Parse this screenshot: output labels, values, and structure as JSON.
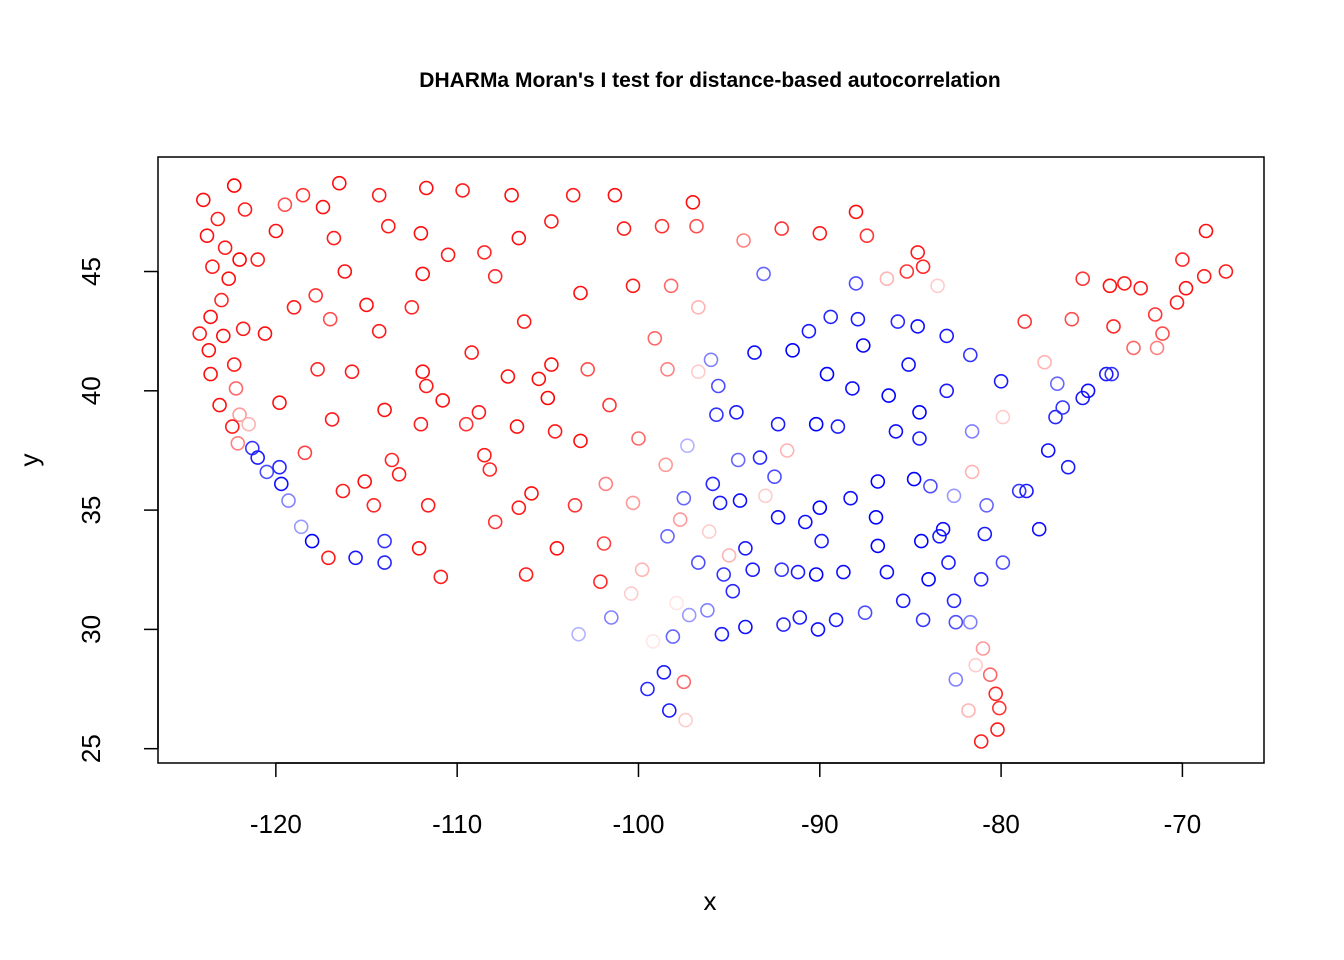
{
  "chart_data": {
    "type": "scatter",
    "title": "DHARMa Moran's I test for distance-based autocorrelation",
    "xlabel": "x",
    "ylabel": "y",
    "xlim": [
      -126.5,
      -65.5
    ],
    "ylim": [
      24.4,
      49.8
    ],
    "x_ticks": [
      -120,
      -110,
      -100,
      -90,
      -80,
      -70
    ],
    "y_ticks": [
      25,
      30,
      35,
      40,
      45
    ],
    "x_tick_labels": [
      "-120",
      "-110",
      "-100",
      "-90",
      "-80",
      "-70"
    ],
    "y_tick_labels": [
      "25",
      "30",
      "35",
      "40",
      "45"
    ],
    "grid": false,
    "legend": "none",
    "marker": "open-circle",
    "color_scale": {
      "low": "#0000ff",
      "mid": "#ffffff",
      "high": "#ff0000"
    },
    "points": [
      [
        -124.0,
        48.0,
        0.95
      ],
      [
        -123.2,
        47.2,
        0.9
      ],
      [
        -122.3,
        48.6,
        1.0
      ],
      [
        -121.7,
        47.6,
        0.9
      ],
      [
        -123.8,
        46.5,
        0.95
      ],
      [
        -122.8,
        46.0,
        0.9
      ],
      [
        -122.0,
        45.5,
        1.0
      ],
      [
        -123.5,
        45.2,
        0.9
      ],
      [
        -122.6,
        44.7,
        0.95
      ],
      [
        -123.0,
        43.8,
        0.85
      ],
      [
        -123.6,
        43.1,
        0.95
      ],
      [
        -124.2,
        42.4,
        0.9
      ],
      [
        -122.9,
        42.3,
        0.95
      ],
      [
        -121.8,
        42.6,
        0.9
      ],
      [
        -123.7,
        41.7,
        0.95
      ],
      [
        -122.3,
        41.1,
        0.9
      ],
      [
        -123.6,
        40.7,
        0.95
      ],
      [
        -122.2,
        40.1,
        0.6
      ],
      [
        -123.1,
        39.4,
        0.95
      ],
      [
        -122.0,
        39.0,
        0.4
      ],
      [
        -122.4,
        38.5,
        0.9
      ],
      [
        -121.5,
        38.6,
        0.3
      ],
      [
        -122.1,
        37.8,
        0.5
      ],
      [
        -121.3,
        37.6,
        -0.8
      ],
      [
        -121.0,
        37.2,
        -0.9
      ],
      [
        -120.5,
        36.6,
        -0.7
      ],
      [
        -119.8,
        36.8,
        -0.85
      ],
      [
        -119.7,
        36.1,
        -0.95
      ],
      [
        -119.3,
        35.4,
        -0.5
      ],
      [
        -118.6,
        34.3,
        -0.4
      ],
      [
        -118.0,
        33.7,
        -1.0
      ],
      [
        -117.1,
        33.0,
        0.9
      ],
      [
        -115.6,
        33.0,
        -0.9
      ],
      [
        -114.0,
        32.8,
        -0.85
      ],
      [
        -114.0,
        33.7,
        -0.8
      ],
      [
        -121.0,
        45.5,
        0.9
      ],
      [
        -120.0,
        46.7,
        0.95
      ],
      [
        -119.5,
        47.8,
        0.7
      ],
      [
        -118.5,
        48.2,
        0.8
      ],
      [
        -117.4,
        47.7,
        0.95
      ],
      [
        -116.8,
        46.4,
        0.9
      ],
      [
        -116.2,
        45.0,
        0.95
      ],
      [
        -117.8,
        44.0,
        0.8
      ],
      [
        -119.0,
        43.5,
        0.9
      ],
      [
        -120.6,
        42.4,
        0.95
      ],
      [
        -117.0,
        43.0,
        0.7
      ],
      [
        -115.0,
        43.6,
        0.95
      ],
      [
        -114.3,
        42.5,
        0.9
      ],
      [
        -112.5,
        43.5,
        0.85
      ],
      [
        -111.9,
        44.9,
        0.95
      ],
      [
        -113.8,
        46.9,
        0.9
      ],
      [
        -112.0,
        46.6,
        0.95
      ],
      [
        -110.5,
        45.7,
        0.9
      ],
      [
        -108.5,
        45.8,
        0.85
      ],
      [
        -106.6,
        46.4,
        0.95
      ],
      [
        -104.8,
        47.1,
        0.9
      ],
      [
        -107.0,
        48.2,
        0.95
      ],
      [
        -109.7,
        48.4,
        0.9
      ],
      [
        -111.7,
        48.5,
        0.95
      ],
      [
        -114.3,
        48.2,
        0.9
      ],
      [
        -116.5,
        48.7,
        0.95
      ],
      [
        -103.6,
        48.2,
        0.9
      ],
      [
        -101.3,
        48.2,
        0.95
      ],
      [
        -100.8,
        46.8,
        0.9
      ],
      [
        -98.7,
        46.9,
        0.8
      ],
      [
        -97.0,
        47.9,
        0.95
      ],
      [
        -96.8,
        46.9,
        0.7
      ],
      [
        -100.3,
        44.4,
        0.9
      ],
      [
        -103.2,
        44.1,
        0.95
      ],
      [
        -98.2,
        44.4,
        0.6
      ],
      [
        -96.7,
        43.5,
        0.3
      ],
      [
        -106.3,
        42.9,
        0.9
      ],
      [
        -104.8,
        41.1,
        0.95
      ],
      [
        -107.9,
        44.8,
        0.85
      ],
      [
        -109.2,
        41.6,
        0.9
      ],
      [
        -111.9,
        40.8,
        0.95
      ],
      [
        -111.7,
        40.2,
        0.9
      ],
      [
        -113.6,
        37.1,
        0.85
      ],
      [
        -112.0,
        38.6,
        0.9
      ],
      [
        -110.8,
        39.6,
        0.95
      ],
      [
        -109.5,
        38.6,
        0.8
      ],
      [
        -108.5,
        37.3,
        0.9
      ],
      [
        -106.7,
        38.5,
        0.95
      ],
      [
        -105.0,
        39.7,
        1.0
      ],
      [
        -105.5,
        40.5,
        0.95
      ],
      [
        -104.6,
        38.3,
        0.9
      ],
      [
        -103.2,
        37.9,
        0.95
      ],
      [
        -106.6,
        35.1,
        0.9
      ],
      [
        -105.9,
        35.7,
        0.95
      ],
      [
        -108.2,
        36.7,
        0.85
      ],
      [
        -107.9,
        34.5,
        0.8
      ],
      [
        -106.2,
        32.3,
        0.9
      ],
      [
        -104.5,
        33.4,
        0.95
      ],
      [
        -103.5,
        35.2,
        0.8
      ],
      [
        -111.6,
        35.2,
        0.9
      ],
      [
        -112.1,
        33.4,
        0.95
      ],
      [
        -110.9,
        32.2,
        0.9
      ],
      [
        -114.6,
        35.2,
        0.85
      ],
      [
        -113.2,
        36.5,
        0.9
      ],
      [
        -115.1,
        36.2,
        0.95
      ],
      [
        -116.9,
        38.8,
        0.9
      ],
      [
        -119.8,
        39.5,
        0.95
      ],
      [
        -117.7,
        40.9,
        0.85
      ],
      [
        -115.8,
        40.8,
        0.9
      ],
      [
        -114.0,
        39.2,
        0.95
      ],
      [
        -118.4,
        37.4,
        0.75
      ],
      [
        -116.3,
        35.8,
        0.9
      ],
      [
        -108.8,
        39.1,
        0.9
      ],
      [
        -107.2,
        40.6,
        0.95
      ],
      [
        -102.8,
        40.9,
        0.7
      ],
      [
        -101.6,
        39.4,
        0.8
      ],
      [
        -100.0,
        38.0,
        0.6
      ],
      [
        -101.8,
        36.1,
        0.5
      ],
      [
        -100.3,
        35.3,
        0.4
      ],
      [
        -99.8,
        32.5,
        0.3
      ],
      [
        -101.9,
        33.6,
        0.75
      ],
      [
        -102.1,
        32.0,
        0.85
      ],
      [
        -103.3,
        29.8,
        -0.3
      ],
      [
        -101.5,
        30.5,
        -0.5
      ],
      [
        -100.4,
        31.5,
        0.2
      ],
      [
        -99.2,
        29.5,
        0.1
      ],
      [
        -98.6,
        28.2,
        -0.9
      ],
      [
        -97.5,
        27.8,
        0.6
      ],
      [
        -97.4,
        26.2,
        0.2
      ],
      [
        -98.3,
        26.6,
        -0.9
      ],
      [
        -99.5,
        27.5,
        -0.85
      ],
      [
        -98.1,
        29.7,
        -0.6
      ],
      [
        -97.2,
        30.6,
        -0.4
      ],
      [
        -95.4,
        29.8,
        -0.9
      ],
      [
        -94.1,
        30.1,
        -0.95
      ],
      [
        -96.7,
        32.8,
        -0.7
      ],
      [
        -95.3,
        32.3,
        -0.8
      ],
      [
        -94.1,
        33.4,
        -0.9
      ],
      [
        -97.5,
        35.5,
        -0.6
      ],
      [
        -95.9,
        36.1,
        -0.85
      ],
      [
        -98.5,
        36.9,
        0.4
      ],
      [
        -97.3,
        37.7,
        -0.3
      ],
      [
        -95.7,
        39.0,
        -0.8
      ],
      [
        -94.6,
        39.1,
        -0.9
      ],
      [
        -96.0,
        41.3,
        -0.5
      ],
      [
        -96.7,
        40.8,
        0.2
      ],
      [
        -98.4,
        40.9,
        0.5
      ],
      [
        -99.1,
        42.2,
        0.6
      ],
      [
        -93.6,
        41.6,
        -0.95
      ],
      [
        -91.5,
        41.7,
        -1.0
      ],
      [
        -90.6,
        42.5,
        -0.9
      ],
      [
        -93.1,
        44.9,
        -0.6
      ],
      [
        -94.2,
        46.3,
        0.5
      ],
      [
        -92.1,
        46.8,
        0.8
      ],
      [
        -90.0,
        46.6,
        0.9
      ],
      [
        -89.4,
        43.1,
        -0.85
      ],
      [
        -88.0,
        44.5,
        -0.7
      ],
      [
        -87.9,
        43.0,
        -0.9
      ],
      [
        -89.6,
        40.7,
        -1.0
      ],
      [
        -87.6,
        41.9,
        -1.0
      ],
      [
        -88.2,
        40.1,
        -0.95
      ],
      [
        -89.0,
        38.5,
        -0.9
      ],
      [
        -90.2,
        38.6,
        -1.0
      ],
      [
        -92.3,
        38.6,
        -0.9
      ],
      [
        -93.3,
        37.2,
        -0.85
      ],
      [
        -94.5,
        37.1,
        -0.6
      ],
      [
        -92.3,
        34.7,
        -0.95
      ],
      [
        -90.0,
        35.1,
        -1.0
      ],
      [
        -91.2,
        32.4,
        -0.9
      ],
      [
        -90.2,
        32.3,
        -1.0
      ],
      [
        -88.7,
        32.4,
        -0.95
      ],
      [
        -89.1,
        30.4,
        -0.9
      ],
      [
        -90.1,
        30.0,
        -0.95
      ],
      [
        -91.1,
        30.5,
        -0.9
      ],
      [
        -92.0,
        30.2,
        -0.85
      ],
      [
        -86.8,
        33.5,
        -1.0
      ],
      [
        -86.3,
        32.4,
        -0.95
      ],
      [
        -85.4,
        31.2,
        -0.9
      ],
      [
        -84.4,
        33.7,
        -1.0
      ],
      [
        -83.4,
        33.9,
        -0.9
      ],
      [
        -84.3,
        30.4,
        -0.8
      ],
      [
        -82.5,
        30.3,
        -0.7
      ],
      [
        -81.7,
        30.3,
        -0.5
      ],
      [
        -81.4,
        28.5,
        0.2
      ],
      [
        -82.5,
        27.9,
        -0.5
      ],
      [
        -80.2,
        25.8,
        0.9
      ],
      [
        -80.1,
        26.7,
        0.8
      ],
      [
        -80.6,
        28.1,
        0.6
      ],
      [
        -81.0,
        29.2,
        0.4
      ],
      [
        -81.8,
        26.6,
        0.3
      ],
      [
        -80.3,
        27.3,
        0.85
      ],
      [
        -81.1,
        25.3,
        0.9
      ],
      [
        -86.8,
        36.2,
        -1.0
      ],
      [
        -85.8,
        38.3,
        -0.95
      ],
      [
        -84.5,
        38.0,
        -0.9
      ],
      [
        -83.9,
        36.0,
        -0.7
      ],
      [
        -82.6,
        35.6,
        -0.4
      ],
      [
        -81.6,
        36.6,
        0.3
      ],
      [
        -80.8,
        35.2,
        -0.6
      ],
      [
        -79.0,
        35.8,
        -0.8
      ],
      [
        -78.6,
        35.8,
        -0.9
      ],
      [
        -77.9,
        34.2,
        -0.95
      ],
      [
        -80.9,
        34.0,
        -0.9
      ],
      [
        -79.9,
        32.8,
        -0.7
      ],
      [
        -81.1,
        32.1,
        -0.85
      ],
      [
        -86.2,
        39.8,
        -1.0
      ],
      [
        -85.1,
        41.1,
        -0.95
      ],
      [
        -83.0,
        40.0,
        -0.9
      ],
      [
        -81.7,
        41.5,
        -0.8
      ],
      [
        -84.5,
        39.1,
        -1.0
      ],
      [
        -80.0,
        40.4,
        -0.9
      ],
      [
        -79.9,
        38.9,
        0.2
      ],
      [
        -81.6,
        38.3,
        -0.5
      ],
      [
        -77.4,
        37.5,
        -0.95
      ],
      [
        -76.3,
        36.8,
        -0.9
      ],
      [
        -77.0,
        38.9,
        -0.85
      ],
      [
        -76.6,
        39.3,
        -0.8
      ],
      [
        -75.5,
        39.7,
        -0.9
      ],
      [
        -75.2,
        40.0,
        -0.95
      ],
      [
        -74.2,
        40.7,
        -0.9
      ],
      [
        -73.9,
        40.7,
        -0.8
      ],
      [
        -76.9,
        40.3,
        -0.6
      ],
      [
        -77.6,
        41.2,
        0.3
      ],
      [
        -78.7,
        42.9,
        0.8
      ],
      [
        -76.1,
        43.0,
        0.7
      ],
      [
        -73.8,
        42.7,
        0.85
      ],
      [
        -73.2,
        44.5,
        0.9
      ],
      [
        -71.5,
        43.2,
        0.8
      ],
      [
        -71.1,
        42.4,
        0.7
      ],
      [
        -72.7,
        41.8,
        0.6
      ],
      [
        -71.4,
        41.8,
        0.5
      ],
      [
        -70.3,
        43.7,
        0.9
      ],
      [
        -69.8,
        44.3,
        0.95
      ],
      [
        -68.8,
        44.8,
        0.9
      ],
      [
        -68.7,
        46.7,
        0.95
      ],
      [
        -67.6,
        45.0,
        0.9
      ],
      [
        -70.0,
        45.5,
        0.85
      ],
      [
        -72.3,
        44.3,
        0.9
      ],
      [
        -74.0,
        44.4,
        0.95
      ],
      [
        -75.5,
        44.7,
        0.8
      ],
      [
        -83.0,
        42.3,
        -0.9
      ],
      [
        -84.6,
        42.7,
        -0.95
      ],
      [
        -85.7,
        42.9,
        -0.85
      ],
      [
        -86.3,
        44.7,
        0.3
      ],
      [
        -84.6,
        45.8,
        0.9
      ],
      [
        -84.3,
        45.2,
        0.85
      ],
      [
        -85.2,
        45.0,
        0.8
      ],
      [
        -83.5,
        44.4,
        0.2
      ],
      [
        -88.0,
        47.5,
        0.95
      ],
      [
        -87.4,
        46.5,
        0.8
      ],
      [
        -84.8,
        36.3,
        -1.0
      ],
      [
        -83.2,
        34.2,
        -0.95
      ],
      [
        -82.9,
        32.8,
        -0.9
      ],
      [
        -84.0,
        32.1,
        -1.0
      ],
      [
        -82.6,
        31.2,
        -0.85
      ],
      [
        -86.9,
        34.7,
        -1.0
      ],
      [
        -88.3,
        35.5,
        -0.95
      ],
      [
        -89.9,
        33.7,
        -0.9
      ],
      [
        -90.8,
        34.5,
        -0.95
      ],
      [
        -87.5,
        30.7,
        -0.7
      ],
      [
        -95.5,
        35.3,
        -0.9
      ],
      [
        -94.4,
        35.4,
        -0.95
      ],
      [
        -93.0,
        35.6,
        0.2
      ],
      [
        -92.5,
        36.4,
        -0.7
      ],
      [
        -91.8,
        37.5,
        0.3
      ],
      [
        -96.1,
        34.1,
        0.2
      ],
      [
        -97.7,
        34.6,
        0.4
      ],
      [
        -98.4,
        33.9,
        -0.6
      ],
      [
        -96.2,
        30.8,
        -0.5
      ],
      [
        -94.8,
        31.6,
        -0.85
      ],
      [
        -93.7,
        32.5,
        -0.9
      ],
      [
        -92.1,
        32.5,
        -0.8
      ],
      [
        -95.0,
        33.1,
        0.3
      ],
      [
        -97.9,
        31.1,
        0.1
      ],
      [
        -95.6,
        40.2,
        -0.7
      ]
    ]
  }
}
